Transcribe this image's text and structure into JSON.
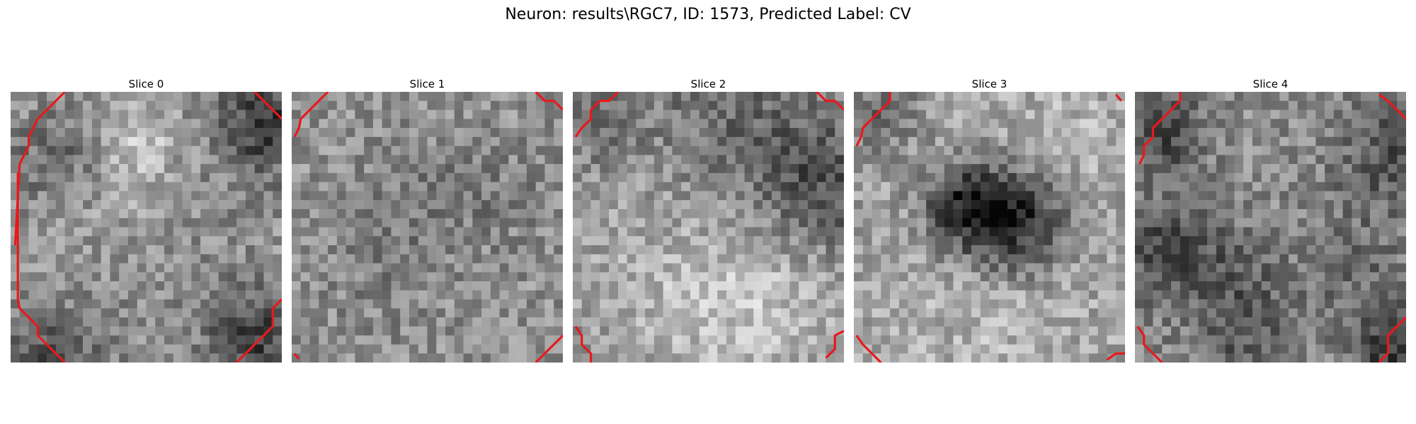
{
  "figure": {
    "title": "Neuron: results\\RGC7, ID: 1573, Predicted Label: CV"
  },
  "colors": {
    "contour": "#e8191d",
    "background": "#ffffff"
  },
  "panels": [
    {
      "title": "Slice 0"
    },
    {
      "title": "Slice 1"
    },
    {
      "title": "Slice 2"
    },
    {
      "title": "Slice 3"
    },
    {
      "title": "Slice 4"
    }
  ]
}
